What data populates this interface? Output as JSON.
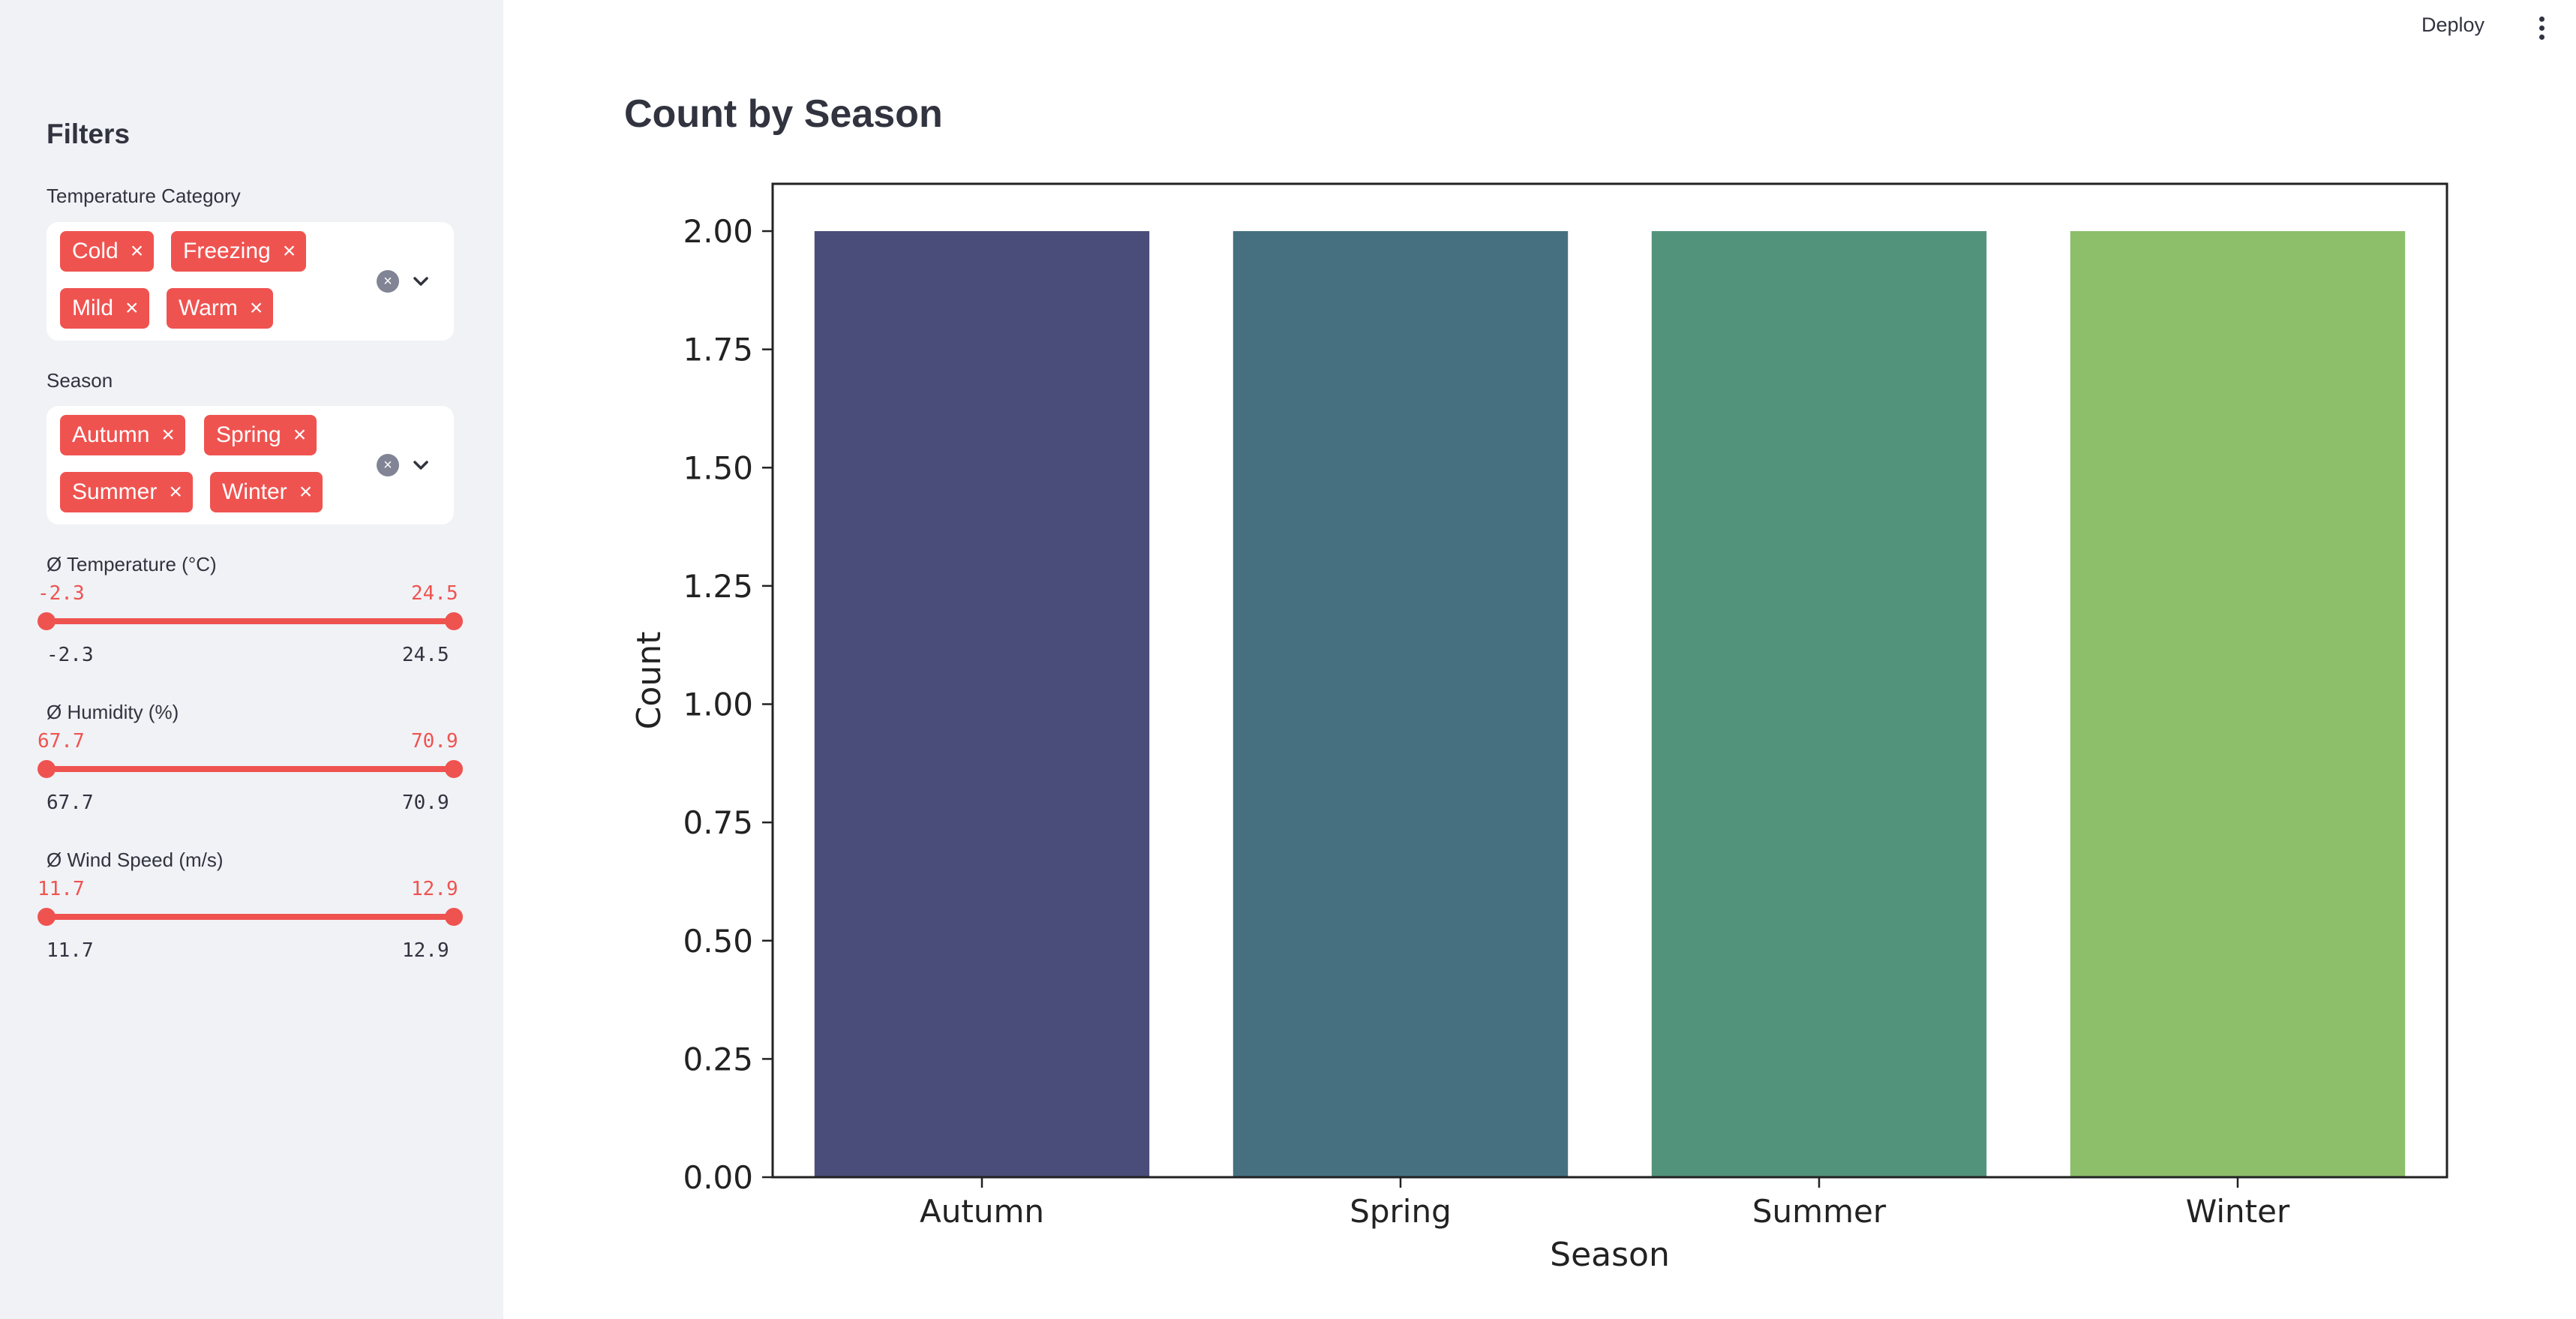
{
  "header": {
    "deploy_label": "Deploy",
    "menu_icon": "vertical-ellipsis-icon"
  },
  "sidebar": {
    "title": "Filters",
    "temperature_category": {
      "label": "Temperature Category",
      "chips": [
        "Cold",
        "Freezing",
        "Mild",
        "Warm"
      ]
    },
    "season": {
      "label": "Season",
      "chips": [
        "Autumn",
        "Spring",
        "Summer",
        "Winter"
      ]
    },
    "sliders": [
      {
        "label": "Ø Temperature (°C)",
        "min_label": "-2.3",
        "max_label": "24.5",
        "low": "-2.3",
        "high": "24.5"
      },
      {
        "label": "Ø Humidity (%)",
        "min_label": "67.7",
        "max_label": "70.9",
        "low": "67.7",
        "high": "70.9"
      },
      {
        "label": "Ø Wind Speed (m/s)",
        "min_label": "11.7",
        "max_label": "12.9",
        "low": "11.7",
        "high": "12.9"
      }
    ],
    "accent_color": "#ef5350"
  },
  "main": {
    "title": "Count by Season"
  },
  "chart_data": {
    "type": "bar",
    "categories": [
      "Autumn",
      "Spring",
      "Summer",
      "Winter"
    ],
    "values": [
      2,
      2,
      2,
      2
    ],
    "colors": [
      "#4a4c79",
      "#46707f",
      "#52947b",
      "#8dbe6a"
    ],
    "xlabel": "Season",
    "ylabel": "Count",
    "ylim": [
      0,
      2.1
    ],
    "yticks": [
      "0.00",
      "0.25",
      "0.50",
      "0.75",
      "1.00",
      "1.25",
      "1.50",
      "1.75",
      "2.00"
    ],
    "grid": false
  }
}
